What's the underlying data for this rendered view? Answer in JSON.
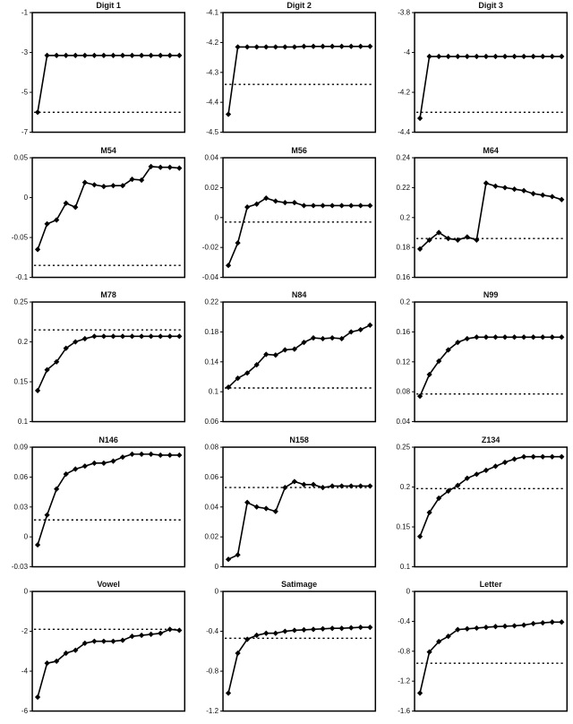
{
  "chart_data": {
    "type": "line",
    "layout": {
      "rows": 5,
      "cols": 3,
      "marker": "diamond",
      "line_color": "#000000",
      "marker_color": "#000000",
      "baseline_color": "#000000",
      "baseline_style": "dotted",
      "background": "#ffffff",
      "grid": false,
      "legend": "none",
      "x_tick_labels": "none",
      "points_per_series": 16
    },
    "charts": [
      {
        "title": "Digit 1",
        "ylim": [
          -7,
          -1
        ],
        "yticks": [
          "-1",
          "-3",
          "-5",
          "-7"
        ],
        "baseline": -6.0,
        "values": [
          -6.0,
          -3.15,
          -3.15,
          -3.15,
          -3.15,
          -3.15,
          -3.15,
          -3.15,
          -3.15,
          -3.15,
          -3.15,
          -3.15,
          -3.15,
          -3.15,
          -3.15,
          -3.15
        ]
      },
      {
        "title": "Digit 2",
        "ylim": [
          -4.5,
          -4.1
        ],
        "yticks": [
          "-4.1",
          "-4.2",
          "-4.3",
          "-4.4",
          "-4.5"
        ],
        "baseline": -4.34,
        "values": [
          -4.44,
          -4.215,
          -4.215,
          -4.215,
          -4.215,
          -4.215,
          -4.215,
          -4.215,
          -4.213,
          -4.213,
          -4.213,
          -4.213,
          -4.213,
          -4.213,
          -4.213,
          -4.213
        ]
      },
      {
        "title": "Digit 3",
        "ylim": [
          -4.4,
          -3.8
        ],
        "yticks": [
          "-3.8",
          "-4",
          "-4.2",
          "-4.4"
        ],
        "baseline": -4.3,
        "values": [
          -4.33,
          -4.02,
          -4.02,
          -4.02,
          -4.02,
          -4.02,
          -4.02,
          -4.02,
          -4.02,
          -4.02,
          -4.02,
          -4.02,
          -4.02,
          -4.02,
          -4.02,
          -4.02
        ]
      },
      {
        "title": "M54",
        "ylim": [
          -0.1,
          0.05
        ],
        "yticks": [
          "0.05",
          "0",
          "-0.05",
          "-0.1"
        ],
        "baseline": -0.085,
        "values": [
          -0.065,
          -0.033,
          -0.028,
          -0.007,
          -0.012,
          0.019,
          0.016,
          0.014,
          0.015,
          0.015,
          0.023,
          0.022,
          0.039,
          0.038,
          0.038,
          0.037
        ]
      },
      {
        "title": "M56",
        "ylim": [
          -0.04,
          0.04
        ],
        "yticks": [
          "0.04",
          "0.02",
          "0",
          "-0.02",
          "-0.04"
        ],
        "baseline": -0.003,
        "values": [
          -0.032,
          -0.017,
          0.007,
          0.009,
          0.013,
          0.011,
          0.01,
          0.01,
          0.008,
          0.008,
          0.008,
          0.008,
          0.008,
          0.008,
          0.008,
          0.008
        ]
      },
      {
        "title": "M64",
        "ylim": [
          0.16,
          0.24
        ],
        "yticks": [
          "0.24",
          "0.22",
          "0.2",
          "0.18",
          "0.16"
        ],
        "baseline": 0.186,
        "values": [
          0.179,
          0.185,
          0.19,
          0.186,
          0.185,
          0.187,
          0.185,
          0.223,
          0.221,
          0.22,
          0.219,
          0.218,
          0.216,
          0.215,
          0.214,
          0.212
        ]
      },
      {
        "title": "M78",
        "ylim": [
          0.1,
          0.25
        ],
        "yticks": [
          "0.25",
          "0.2",
          "0.15",
          "0.1"
        ],
        "baseline": 0.215,
        "values": [
          0.139,
          0.165,
          0.175,
          0.192,
          0.2,
          0.204,
          0.207,
          0.207,
          0.207,
          0.207,
          0.207,
          0.207,
          0.207,
          0.207,
          0.207,
          0.207
        ]
      },
      {
        "title": "N84",
        "ylim": [
          0.06,
          0.22
        ],
        "yticks": [
          "0.22",
          "0.18",
          "0.14",
          "0.1",
          "0.06"
        ],
        "baseline": 0.105,
        "values": [
          0.106,
          0.118,
          0.125,
          0.136,
          0.15,
          0.149,
          0.156,
          0.157,
          0.166,
          0.172,
          0.171,
          0.172,
          0.171,
          0.18,
          0.183,
          0.189
        ]
      },
      {
        "title": "N99",
        "ylim": [
          0.04,
          0.2
        ],
        "yticks": [
          "0.2",
          "0.16",
          "0.12",
          "0.08",
          "0.04"
        ],
        "baseline": 0.077,
        "values": [
          0.074,
          0.103,
          0.121,
          0.136,
          0.146,
          0.151,
          0.153,
          0.153,
          0.153,
          0.153,
          0.153,
          0.153,
          0.153,
          0.153,
          0.153,
          0.153
        ]
      },
      {
        "title": "N146",
        "ylim": [
          -0.03,
          0.09
        ],
        "yticks": [
          "0.09",
          "0.06",
          "0.03",
          "0",
          "-0.03"
        ],
        "baseline": 0.017,
        "values": [
          -0.008,
          0.022,
          0.048,
          0.063,
          0.068,
          0.071,
          0.074,
          0.074,
          0.076,
          0.08,
          0.083,
          0.083,
          0.083,
          0.082,
          0.082,
          0.082
        ]
      },
      {
        "title": "N158",
        "ylim": [
          0,
          0.08
        ],
        "yticks": [
          "0.08",
          "0.06",
          "0.04",
          "0.02",
          "0"
        ],
        "baseline": 0.053,
        "values": [
          0.005,
          0.008,
          0.043,
          0.04,
          0.039,
          0.037,
          0.053,
          0.057,
          0.055,
          0.055,
          0.053,
          0.054,
          0.054,
          0.054,
          0.054,
          0.054
        ]
      },
      {
        "title": "Z134",
        "ylim": [
          0.1,
          0.25
        ],
        "yticks": [
          "0.25",
          "0.2",
          "0.15",
          "0.1"
        ],
        "baseline": 0.198,
        "values": [
          0.138,
          0.168,
          0.186,
          0.195,
          0.202,
          0.211,
          0.216,
          0.221,
          0.226,
          0.231,
          0.235,
          0.238,
          0.238,
          0.238,
          0.238,
          0.238
        ]
      },
      {
        "title": "Vowel",
        "ylim": [
          -6,
          0
        ],
        "yticks": [
          "0",
          "-2",
          "-4",
          "-6"
        ],
        "baseline": -1.9,
        "values": [
          -5.3,
          -3.6,
          -3.5,
          -3.1,
          -2.95,
          -2.6,
          -2.5,
          -2.5,
          -2.5,
          -2.45,
          -2.25,
          -2.2,
          -2.15,
          -2.1,
          -1.9,
          -1.95
        ]
      },
      {
        "title": "Satimage",
        "ylim": [
          -1.2,
          0
        ],
        "yticks": [
          "0",
          "-0.4",
          "-0.8",
          "-1.2"
        ],
        "baseline": -0.47,
        "values": [
          -1.02,
          -0.62,
          -0.48,
          -0.44,
          -0.42,
          -0.42,
          -0.4,
          -0.39,
          -0.385,
          -0.38,
          -0.375,
          -0.37,
          -0.37,
          -0.365,
          -0.36,
          -0.36
        ]
      },
      {
        "title": "Letter",
        "ylim": [
          -1.6,
          0
        ],
        "yticks": [
          "0",
          "-0.4",
          "-0.8",
          "-1.2",
          "-1.6"
        ],
        "baseline": -0.96,
        "values": [
          -1.36,
          -0.81,
          -0.67,
          -0.6,
          -0.51,
          -0.5,
          -0.49,
          -0.48,
          -0.47,
          -0.465,
          -0.46,
          -0.45,
          -0.43,
          -0.42,
          -0.41,
          -0.41
        ]
      }
    ]
  }
}
